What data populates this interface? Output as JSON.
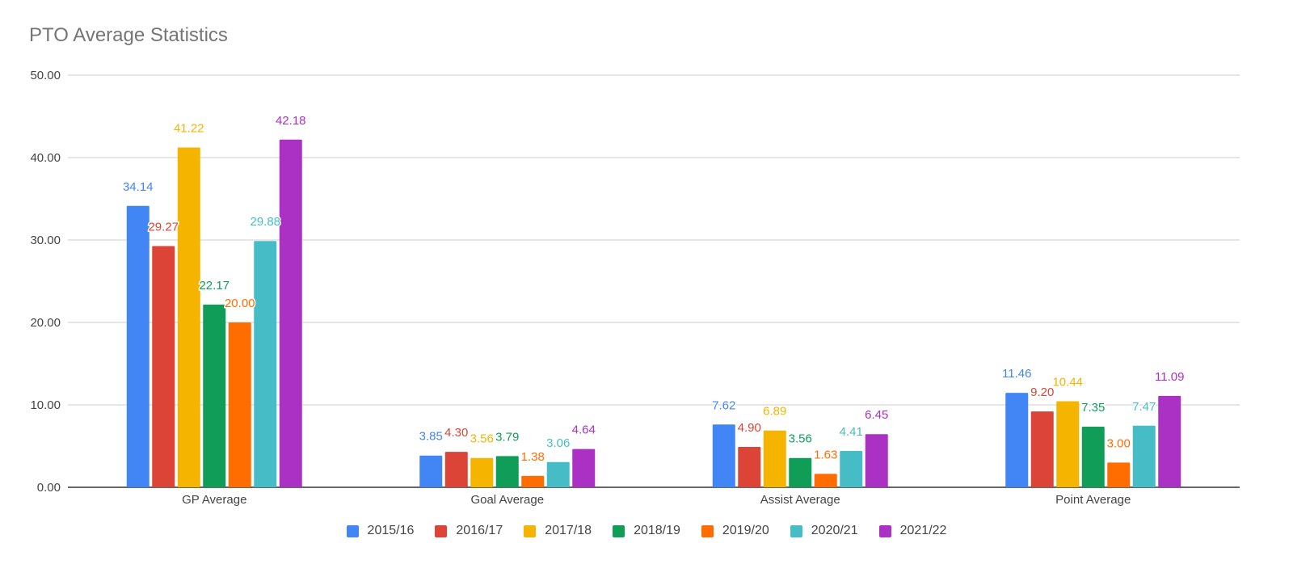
{
  "chart_data": {
    "type": "bar",
    "title": "PTO Average Statistics",
    "categories": [
      "GP Average",
      "Goal Average",
      "Assist Average",
      "Point Average"
    ],
    "ylim": [
      0,
      50
    ],
    "y_ticks": [
      "0.00",
      "10.00",
      "20.00",
      "30.00",
      "40.00",
      "50.00"
    ],
    "grid": true,
    "legend_position": "bottom",
    "series": [
      {
        "name": "2015/16",
        "color": "#4285f4",
        "values": [
          34.14,
          3.85,
          7.62,
          11.46
        ],
        "labels": [
          "34.14",
          "3.85",
          "7.62",
          "11.46"
        ]
      },
      {
        "name": "2016/17",
        "color": "#db4437",
        "values": [
          29.27,
          4.3,
          4.9,
          9.2
        ],
        "labels": [
          "29.27",
          "4.30",
          "4.90",
          "9.20"
        ]
      },
      {
        "name": "2017/18",
        "color": "#f4b400",
        "values": [
          41.22,
          3.56,
          6.89,
          10.44
        ],
        "labels": [
          "41.22",
          "3.56",
          "6.89",
          "10.44"
        ]
      },
      {
        "name": "2018/19",
        "color": "#0f9d58",
        "values": [
          22.17,
          3.79,
          3.56,
          7.35
        ],
        "labels": [
          "22.17",
          "3.79",
          "3.56",
          "7.35"
        ]
      },
      {
        "name": "2019/20",
        "color": "#ff6d00",
        "values": [
          20.0,
          1.38,
          1.63,
          3.0
        ],
        "labels": [
          "20.00",
          "1.38",
          "1.63",
          "3.00"
        ]
      },
      {
        "name": "2020/21",
        "color": "#46bdc6",
        "values": [
          29.88,
          3.06,
          4.41,
          7.47
        ],
        "labels": [
          "29.88",
          "3.06",
          "4.41",
          "7.47"
        ]
      },
      {
        "name": "2021/22",
        "color": "#ab30c4",
        "values": [
          42.18,
          4.64,
          6.45,
          11.09
        ],
        "labels": [
          "42.18",
          "4.64",
          "6.45",
          "11.09"
        ]
      }
    ]
  }
}
